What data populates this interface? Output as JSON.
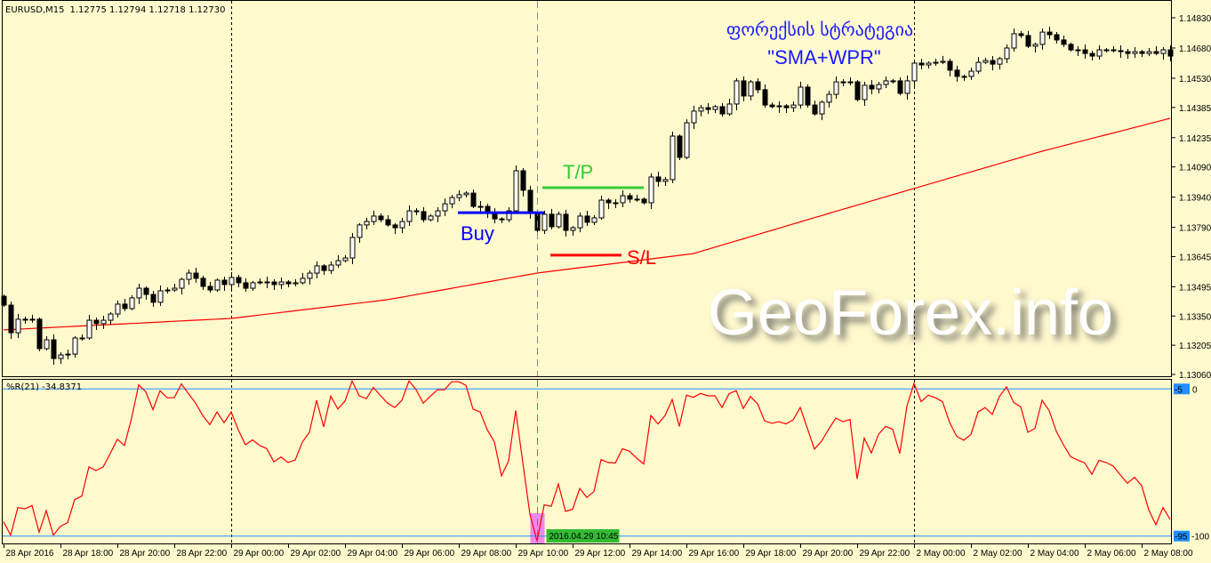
{
  "header": {
    "symbol": "EURUSD,M15",
    "ohlc": "1.12775 1.12794 1.12718 1.12730"
  },
  "colors": {
    "background": "#fff9ce",
    "bull_body": "#ffffff",
    "bear_body": "#000000",
    "sma": "#ff0000",
    "wpr": "#ff0000",
    "levels": "#1e90ff",
    "buy": "#0000ff",
    "tp": "#33cc33",
    "sl": "#ff0000",
    "cursor_time_bg": "#33bb33",
    "highlight": "#ee88ee"
  },
  "annotations": {
    "title_georgian": "ფორექსის სტრატეგია",
    "title_strategy": "\"SMA+WPR\"",
    "buy": "Buy",
    "tp": "T/P",
    "sl": "S/L",
    "watermark": "GeoForex.info"
  },
  "indicator": {
    "label": "%R(21) -34.8371",
    "levels": [
      -5,
      -95
    ],
    "level_labels": [
      "-5",
      "-95"
    ],
    "scale_labels": [
      "0",
      "-100"
    ]
  },
  "cursor": {
    "time_label": "2016.04.29 10:45",
    "bar": 75
  },
  "chart_data": [
    {
      "type": "candlestick",
      "title": "EURUSD,M15",
      "timeframe_minutes": 15,
      "first_bar_time": "2016-04-28 16:00",
      "first_open": 1.13448,
      "close": [
        1.13404,
        1.13267,
        1.13334,
        1.13334,
        1.13334,
        1.13188,
        1.13232,
        1.13139,
        1.13157,
        1.13161,
        1.13241,
        1.13241,
        1.13329,
        1.13312,
        1.13329,
        1.1336,
        1.13409,
        1.13387,
        1.1344,
        1.13488,
        1.13457,
        1.13418,
        1.13475,
        1.13479,
        1.13488,
        1.13532,
        1.13563,
        1.13537,
        1.13497,
        1.13479,
        1.13528,
        1.13506,
        1.13541,
        1.13515,
        1.13488,
        1.13515,
        1.13519,
        1.13519,
        1.13506,
        1.13519,
        1.1351,
        1.13515,
        1.13537,
        1.13563,
        1.13599,
        1.13576,
        1.13603,
        1.13625,
        1.13638,
        1.1374,
        1.13802,
        1.13819,
        1.13846,
        1.13828,
        1.13802,
        1.13788,
        1.13819,
        1.13872,
        1.13868,
        1.13828,
        1.13846,
        1.13872,
        1.13907,
        1.13938,
        1.13952,
        1.1396,
        1.13894,
        1.13894,
        1.13863,
        1.13832,
        1.13828,
        1.13872,
        1.14071,
        1.13974,
        1.13859,
        1.13775,
        1.13855,
        1.13793,
        1.13855,
        1.13775,
        1.13788,
        1.13846,
        1.13815,
        1.13837,
        1.13925,
        1.13912,
        1.13912,
        1.13947,
        1.1393,
        1.1393,
        1.13912,
        1.1404,
        1.14018,
        1.14027,
        1.14243,
        1.14137,
        1.14309,
        1.14367,
        1.14384,
        1.14375,
        1.14389,
        1.14353,
        1.14402,
        1.14517,
        1.14442,
        1.14512,
        1.14473,
        1.14397,
        1.14389,
        1.14393,
        1.14384,
        1.14397,
        1.14486,
        1.14397,
        1.14353,
        1.14411,
        1.1445,
        1.14512,
        1.14508,
        1.14512,
        1.14424,
        1.14495,
        1.14477,
        1.14499,
        1.14517,
        1.14517,
        1.14455,
        1.14517,
        1.14605,
        1.14596,
        1.14605,
        1.14609,
        1.14614,
        1.1457,
        1.14539,
        1.14539,
        1.14565,
        1.14609,
        1.14618,
        1.146,
        1.14627,
        1.1468,
        1.14751,
        1.14742,
        1.14689,
        1.14698,
        1.14759,
        1.14746,
        1.1472,
        1.14698,
        1.14671,
        1.14671,
        1.14653,
        1.1464,
        1.14671,
        1.14671,
        1.14667,
        1.14662,
        1.14653,
        1.14662,
        1.14653,
        1.14662,
        1.14653,
        1.14671,
        1.1464
      ],
      "sma_points": [
        [
          0,
          1.13281
        ],
        [
          32,
          1.13338
        ],
        [
          54,
          1.13431
        ],
        [
          75,
          1.13563
        ],
        [
          97,
          1.1366
        ],
        [
          116,
          1.13859
        ],
        [
          128,
          1.13983
        ],
        [
          146,
          1.14168
        ],
        [
          164,
          1.14331
        ]
      ],
      "ylim": [
        1.1303,
        1.1488
      ],
      "price_ticks": [
        "1.14830",
        "1.14680",
        "1.14530",
        "1.14385",
        "1.14235",
        "1.14090",
        "1.13940",
        "1.13790",
        "1.13645",
        "1.13495",
        "1.13350",
        "1.13205",
        "1.13060"
      ],
      "trade_levels": {
        "buy": 1.13863,
        "tp": 1.13987,
        "sl": 1.13652
      },
      "time_ticks": [
        "28 Apr 2016",
        "28 Apr 18:00",
        "28 Apr 20:00",
        "28 Apr 22:00",
        "29 Apr 00:00",
        "29 Apr 02:00",
        "29 Apr 04:00",
        "29 Apr 06:00",
        "29 Apr 08:00",
        "29 Apr 10:00",
        "29 Apr 12:00",
        "29 Apr 14:00",
        "29 Apr 16:00",
        "29 Apr 18:00",
        "29 Apr 20:00",
        "29 Apr 22:00",
        "2 May 00:00",
        "2 May 02:00",
        "2 May 04:00",
        "2 May 06:00",
        "2 May 08:00"
      ]
    },
    {
      "type": "line",
      "title": "%R(21)",
      "ylim": [
        -100,
        0
      ],
      "values": [
        -86.3,
        -94.4,
        -77.6,
        -78.3,
        -76.3,
        -92.6,
        -79.5,
        -94.4,
        -89.0,
        -86.8,
        -72.7,
        -70.5,
        -52.7,
        -54.9,
        -52.7,
        -44.5,
        -35.8,
        -39.6,
        -22.8,
        -2.5,
        -6.8,
        -17.7,
        -6.1,
        -10.4,
        -10.4,
        -1.9,
        -7.9,
        -13.7,
        -21.3,
        -26.8,
        -19.1,
        -25.7,
        -19.1,
        -30.0,
        -39.1,
        -36.2,
        -39.6,
        -41.5,
        -49.6,
        -46.7,
        -50.0,
        -48.5,
        -37.6,
        -31.5,
        -11.9,
        -28.2,
        -9.4,
        -17.3,
        -12.4,
        -0.1,
        -9.2,
        -11.0,
        -4.1,
        -9.2,
        -13.7,
        -16.4,
        -11.9,
        -0.1,
        -5.5,
        -13.7,
        -9.5,
        -5.5,
        -5.5,
        -0.6,
        -0.6,
        -2.8,
        -17.3,
        -19.1,
        -30.0,
        -37.3,
        -58.1,
        -49.1,
        -18.2,
        -50.0,
        -81.7,
        -98.1,
        -75.9,
        -76.8,
        -63.2,
        -79.9,
        -78.6,
        -65.9,
        -71.4,
        -67.8,
        -48.2,
        -50.0,
        -50.3,
        -41.6,
        -43.1,
        -47.3,
        -50.9,
        -21.3,
        -26.4,
        -21.3,
        -11.5,
        -27.9,
        -8.8,
        -10.1,
        -7.7,
        -9.2,
        -9.2,
        -16.4,
        -7.9,
        -6.1,
        -17.0,
        -9.7,
        -14.1,
        -24.6,
        -26.0,
        -25.1,
        -26.4,
        -24.0,
        -16.4,
        -29.1,
        -41.8,
        -36.9,
        -29.7,
        -22.8,
        -25.0,
        -23.7,
        -60.0,
        -35.1,
        -44.2,
        -32.8,
        -27.9,
        -29.7,
        -44.5,
        -15.5,
        -1.6,
        -12.8,
        -8.8,
        -10.4,
        -12.8,
        -25.5,
        -34.0,
        -36.4,
        -32.8,
        -19.1,
        -16.4,
        -20.6,
        -9.7,
        -3.7,
        -13.3,
        -15.9,
        -31.5,
        -29.1,
        -11.9,
        -18.2,
        -30.9,
        -39.1,
        -46.4,
        -48.5,
        -50.3,
        -57.2,
        -48.7,
        -50.0,
        -52.2,
        -57.6,
        -62.7,
        -59.1,
        -64.1,
        -79.0,
        -88.1,
        -77.6,
        -84.8
      ]
    }
  ]
}
